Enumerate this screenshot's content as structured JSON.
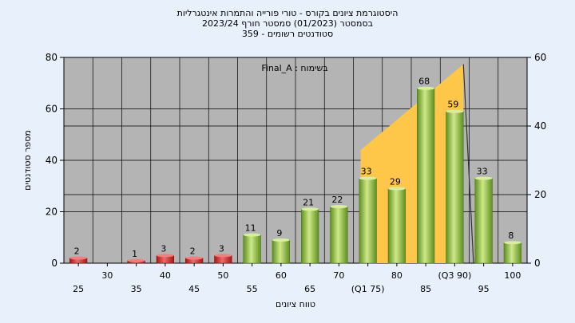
{
  "titles": {
    "line1": "היסטוגרמת ציונים בקורס - טורי פורייה והתמרות אינטגרליות",
    "line2": "בסמסטר  (01/2023)  סמסטר חורף  2023/24",
    "line3": "סטודנטים רשומים - 359"
  },
  "colors": {
    "background": "#e8f0fb",
    "plot_bg": "#b4b4b4",
    "fail_bar": "#d42a2a",
    "pass_bar": "#8cbf3a",
    "iqr_area": "#ffc74a"
  },
  "chart_data": {
    "type": "bar",
    "annotation": "בשימוח : Final_A",
    "xlabel": "טווח ציונים",
    "ylabel": "מספר סטודנטים",
    "categories": [
      "25",
      "30",
      "35",
      "40",
      "45",
      "50",
      "55",
      "60",
      "65",
      "70",
      "(Q1 75)",
      "80",
      "85",
      "(Q3 90)",
      "95",
      "100"
    ],
    "values": [
      2,
      null,
      1,
      3,
      2,
      3,
      11,
      9,
      21,
      22,
      33,
      29,
      68,
      59,
      33,
      8
    ],
    "fail_threshold": 55,
    "ylim": [
      0,
      80
    ],
    "yticks": [
      0,
      20,
      40,
      60,
      80
    ],
    "y2lim": [
      0,
      60
    ],
    "y2ticks": [
      0,
      20,
      40,
      60
    ],
    "grid": true,
    "iqr_area": {
      "from": "(Q1 75)",
      "to": "(Q3 90)",
      "right_axis_values": [
        33,
        58
      ],
      "drop_to": "95"
    }
  }
}
